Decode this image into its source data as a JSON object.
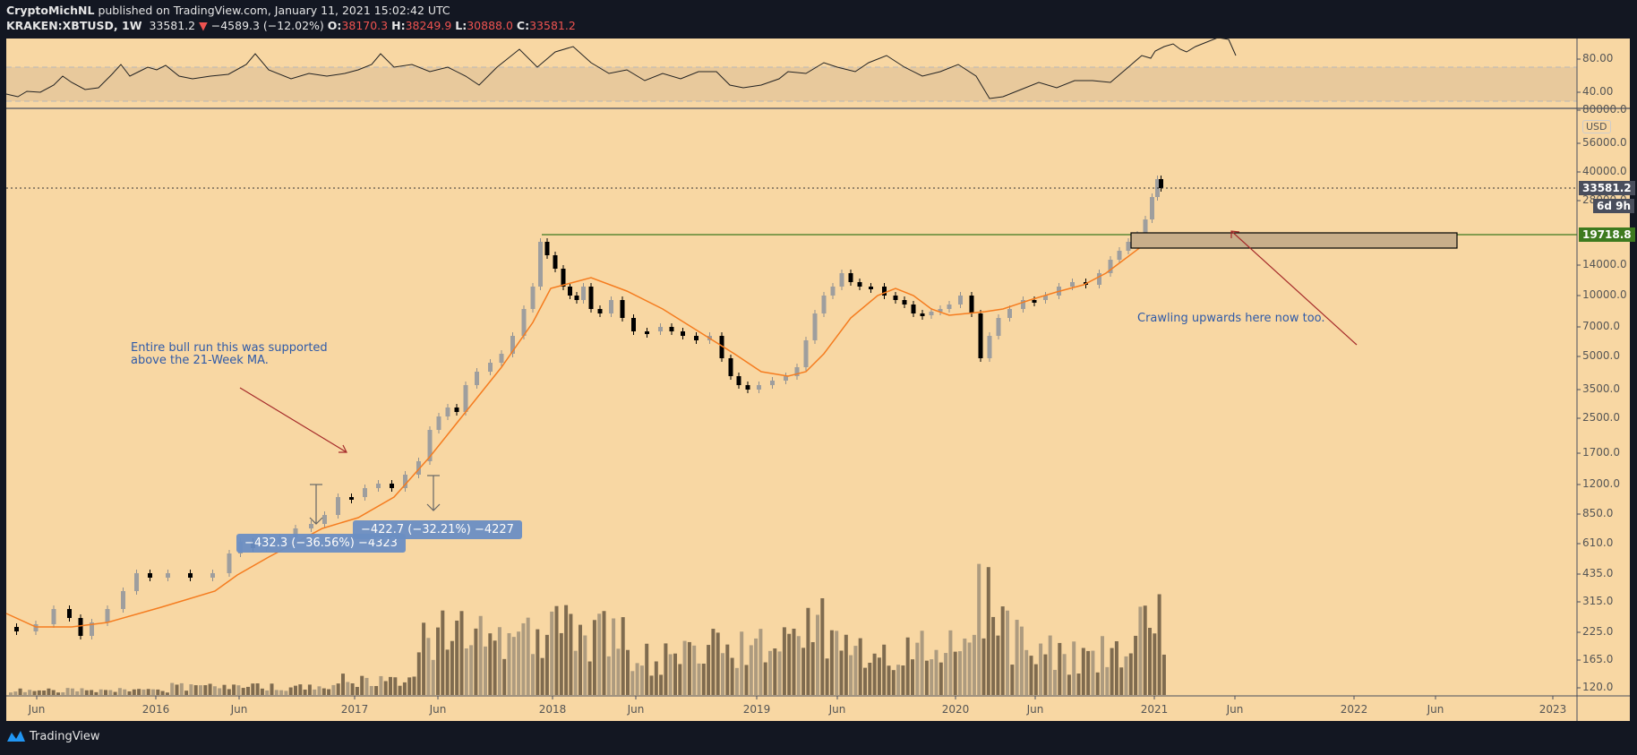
{
  "header": {
    "author": "CryptoMichNL",
    "published": "published on TradingView.com, January 11, 2021 15:02:42 UTC",
    "symbol": "KRAKEN:XBTUSD, 1W",
    "last": "33581.2",
    "change": "−4589.3 (−12.02%)",
    "o_label": "O:",
    "o": "38170.3",
    "h_label": "H:",
    "h": "38249.9",
    "l_label": "L:",
    "l": "30888.0",
    "c_label": "C:",
    "c": "33581.2"
  },
  "price_axis": {
    "currency": "USD",
    "ticks": [
      "80000.0",
      "56000.0",
      "40000.0",
      "28000.0",
      "14000.0",
      "10000.0",
      "7000.0",
      "5000.0",
      "3500.0",
      "2500.0",
      "1700.0",
      "1200.0",
      "850.0",
      "610.0",
      "435.0",
      "315.0",
      "225.0",
      "165.0",
      "120.0"
    ],
    "last_price_tag": "33581.2",
    "countdown_tag": "6d 9h",
    "level_tag": "19718.8"
  },
  "rsi_axis": {
    "ticks": [
      "80.00",
      "40.00"
    ]
  },
  "time_axis": {
    "ticks": [
      "Jun",
      "2016",
      "Jun",
      "2017",
      "Jun",
      "2018",
      "Jun",
      "2019",
      "Jun",
      "2020",
      "Jun",
      "2021",
      "Jun",
      "2022",
      "Jun",
      "2023"
    ]
  },
  "annotations": {
    "bull_run_line1": "Entire bull run this was supported",
    "bull_run_line2": "above the 21-Week MA.",
    "crawling": "Crawling upwards here now too.",
    "measure1": "−432.3 (−36.56%) −4323",
    "measure2": "−422.7 (−32.21%) −4227"
  },
  "footer": {
    "brand": "TradingView"
  },
  "colors": {
    "background": "#f8d7a3",
    "up_candle": "#9e9e9e",
    "down_candle": "#000000",
    "ma": "#f57c1f",
    "resistance": "#3d7a1f",
    "annotation_text": "#2f5aa8",
    "arrow": "#a52a2a",
    "label_bg": "#6b8fc4",
    "volume_dark": "#7f6b4f",
    "volume_light": "#ad9b7f"
  },
  "chart_data": [
    {
      "type": "candlestick",
      "title": "KRAKEN:XBTUSD, 1W",
      "xlabel": "",
      "ylabel": "USD",
      "yscale": "log",
      "ylim": [
        120,
        80000
      ],
      "x": [
        "2015-06",
        "2016-01",
        "2016-06",
        "2017-01",
        "2017-06",
        "2018-01",
        "2018-06",
        "2019-01",
        "2019-06",
        "2020-01",
        "2020-06",
        "2021-01"
      ],
      "close_approx": [
        230,
        430,
        670,
        960,
        2500,
        14000,
        6500,
        3600,
        9500,
        7500,
        9500,
        33581.2
      ],
      "last": {
        "open": 38170.3,
        "high": 38249.9,
        "low": 30888.0,
        "close": 33581.2,
        "change": -4589.3,
        "change_pct": -12.02
      },
      "overlays": [
        {
          "name": "21-Week MA",
          "color": "#f57c1f"
        },
        {
          "name": "Resistance level",
          "value": 19718.8,
          "color": "#3d7a1f"
        }
      ],
      "measurements": [
        {
          "delta": -432.3,
          "pct": -36.56,
          "ticks": -4323
        },
        {
          "delta": -422.7,
          "pct": -32.21,
          "ticks": -4227
        }
      ]
    },
    {
      "type": "line",
      "title": "RSI",
      "ylim": [
        20,
        100
      ],
      "band": [
        30,
        70
      ],
      "ticks": [
        40,
        80
      ],
      "last_approx": 78
    },
    {
      "type": "bar",
      "title": "Volume",
      "note": "weekly volume bars, peaks early 2020 and Jan 2021"
    }
  ]
}
